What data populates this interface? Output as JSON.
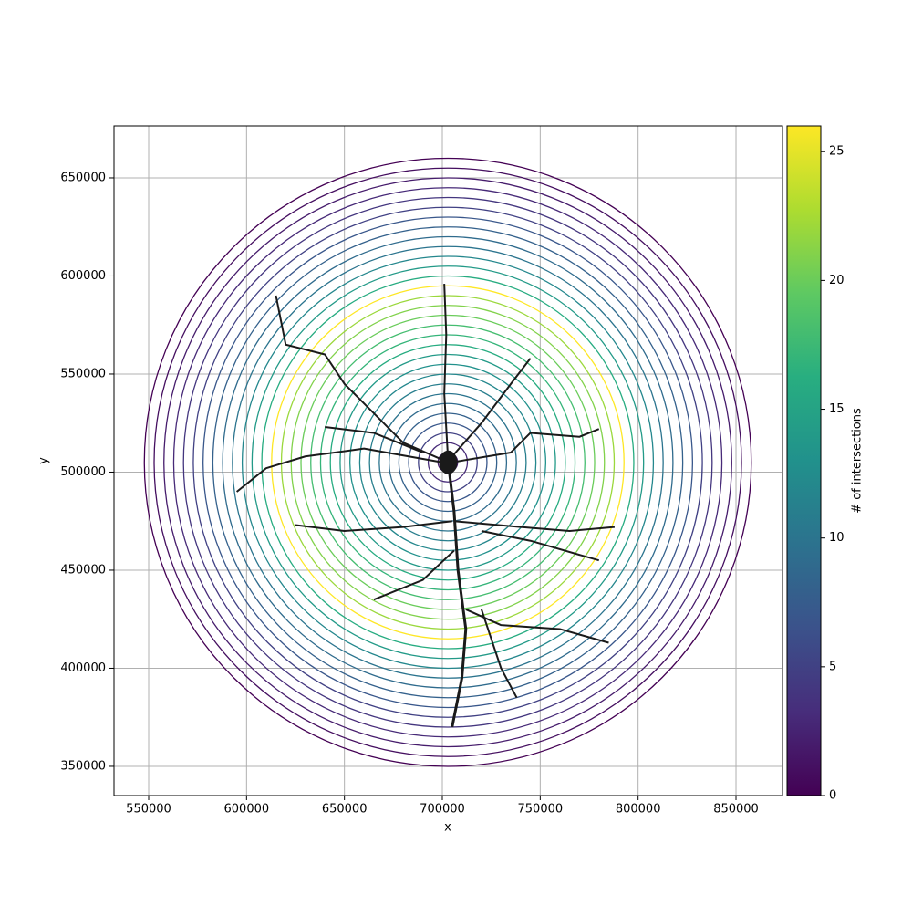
{
  "chart_data": {
    "type": "sholl",
    "xlabel": "x",
    "ylabel": "y",
    "colorbar_label": "# of intersections",
    "xlim": [
      532300,
      873750
    ],
    "ylim": [
      335100,
      676500
    ],
    "xticks": [
      550000,
      600000,
      650000,
      700000,
      750000,
      800000,
      850000
    ],
    "yticks": [
      350000,
      400000,
      450000,
      500000,
      550000,
      600000,
      650000
    ],
    "grid": true,
    "colormap": "viridis",
    "clim": [
      0,
      26
    ],
    "cticks": [
      0,
      5,
      10,
      15,
      20,
      25
    ],
    "center": [
      702800,
      505000
    ],
    "radii": [
      5000,
      10000,
      15000,
      20000,
      25000,
      30000,
      35000,
      40000,
      45000,
      50000,
      55000,
      60000,
      65000,
      70000,
      75000,
      80000,
      85000,
      90000,
      95000,
      100000,
      105000,
      110000,
      115000,
      120000,
      125000,
      130000,
      135000,
      140000,
      145000,
      150000,
      155000
    ],
    "intersections": [
      2,
      3,
      5,
      7,
      8,
      9,
      10,
      11,
      12,
      13,
      14,
      16,
      17,
      18,
      20,
      21,
      22,
      26,
      16,
      14,
      12,
      10,
      9,
      8,
      7,
      5,
      4,
      3,
      2,
      1,
      0
    ],
    "neuron_color": "#1a1a1a",
    "neurites": [
      {
        "x": [
          703000,
          701000,
          702000,
          701000
        ],
        "y": [
          505000,
          540000,
          570000,
          596000
        ]
      },
      {
        "x": [
          703000,
          680000,
          665000,
          650000,
          640000,
          620000,
          615000
        ],
        "y": [
          505000,
          515000,
          530000,
          545000,
          560000,
          565000,
          590000
        ]
      },
      {
        "x": [
          705000,
          720000,
          735000,
          745000
        ],
        "y": [
          508000,
          525000,
          545000,
          558000
        ]
      },
      {
        "x": [
          705000,
          735000,
          745000,
          770000,
          780000
        ],
        "y": [
          505000,
          510000,
          520000,
          518000,
          522000
        ]
      },
      {
        "x": [
          700000,
          660000,
          630000,
          610000,
          595000
        ],
        "y": [
          505000,
          512000,
          508000,
          502000,
          490000
        ]
      },
      {
        "x": [
          690000,
          665000,
          640000
        ],
        "y": [
          510000,
          520000,
          523000
        ]
      },
      {
        "x": [
          703000,
          706000,
          708000,
          712000,
          710000,
          705000
        ],
        "y": [
          505000,
          480000,
          450000,
          420000,
          395000,
          370000
        ]
      },
      {
        "x": [
          705000,
          680000,
          650000,
          625000
        ],
        "y": [
          475000,
          472000,
          470000,
          473000
        ]
      },
      {
        "x": [
          706000,
          740000,
          765000,
          788000
        ],
        "y": [
          475000,
          472000,
          470000,
          472000
        ]
      },
      {
        "x": [
          712000,
          730000,
          760000,
          785000
        ],
        "y": [
          430000,
          422000,
          420000,
          413000
        ]
      },
      {
        "x": [
          706000,
          690000,
          665000
        ],
        "y": [
          460000,
          445000,
          435000
        ]
      },
      {
        "x": [
          720000,
          745000,
          780000
        ],
        "y": [
          470000,
          465000,
          455000
        ]
      },
      {
        "x": [
          720000,
          730000,
          738000
        ],
        "y": [
          430000,
          400000,
          385000
        ]
      }
    ]
  }
}
